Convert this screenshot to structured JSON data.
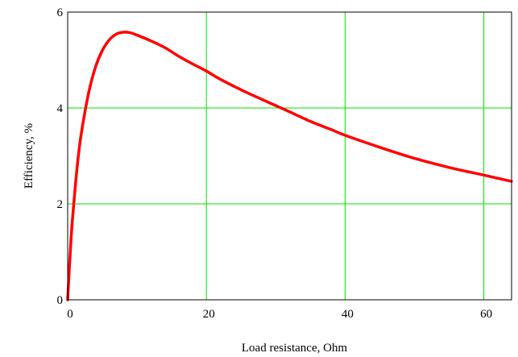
{
  "chart_data": {
    "type": "line",
    "xlabel": "Load resistance, Ohm",
    "ylabel": "Efficiency, %",
    "xlim": [
      0,
      64
    ],
    "ylim": [
      0,
      6
    ],
    "x_ticks": [
      0,
      20,
      40,
      60
    ],
    "y_ticks": [
      0,
      2,
      4,
      6
    ],
    "x_tick_labels": [
      "0",
      "20",
      "40",
      "60"
    ],
    "y_tick_labels": [
      "0",
      "2",
      "4",
      "6"
    ],
    "grid": true,
    "grid_color": "#00e000",
    "series": [
      {
        "color": "#ff0000",
        "x": [
          0,
          0.5,
          1,
          1.5,
          2,
          3,
          4,
          5,
          6,
          7,
          8,
          9,
          10,
          12,
          14,
          16,
          18,
          20,
          22,
          25,
          28,
          30,
          32,
          35,
          38,
          40,
          45,
          50,
          55,
          60,
          64
        ],
        "y": [
          0,
          1.3,
          2.2,
          2.95,
          3.5,
          4.3,
          4.85,
          5.2,
          5.42,
          5.54,
          5.58,
          5.57,
          5.52,
          5.4,
          5.26,
          5.08,
          4.92,
          4.77,
          4.6,
          4.38,
          4.18,
          4.05,
          3.92,
          3.72,
          3.55,
          3.43,
          3.18,
          2.95,
          2.76,
          2.6,
          2.47
        ]
      }
    ]
  }
}
